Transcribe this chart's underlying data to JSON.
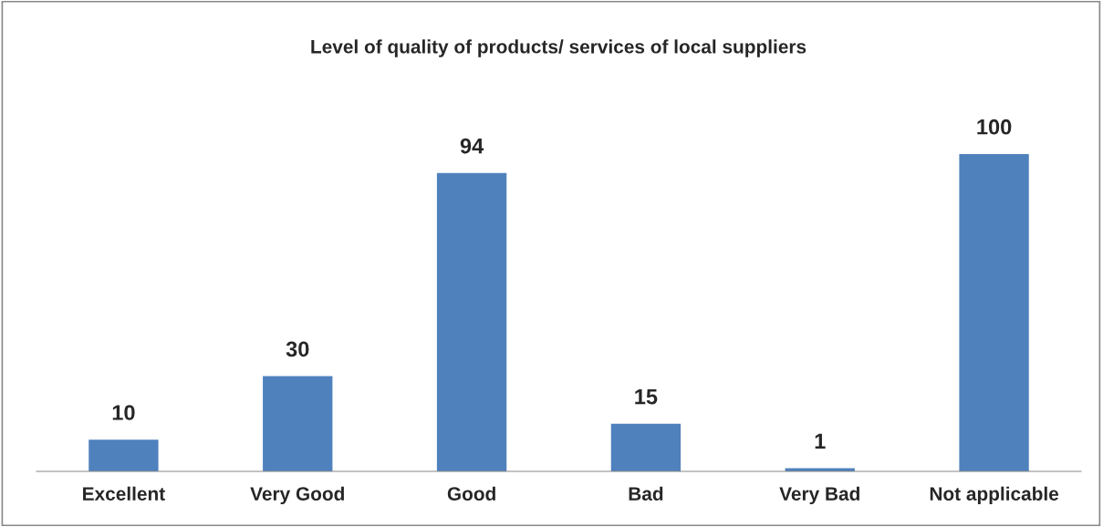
{
  "chart_data": {
    "type": "bar",
    "title": "Level of quality of products/ services of local suppliers",
    "categories": [
      "Excellent",
      "Very Good",
      "Good",
      "Bad",
      "Very Bad",
      "Not applicable"
    ],
    "values": [
      10,
      30,
      94,
      15,
      1,
      100
    ],
    "color": "#4f81bd",
    "data_labels": true,
    "grid": false,
    "legend": false
  }
}
